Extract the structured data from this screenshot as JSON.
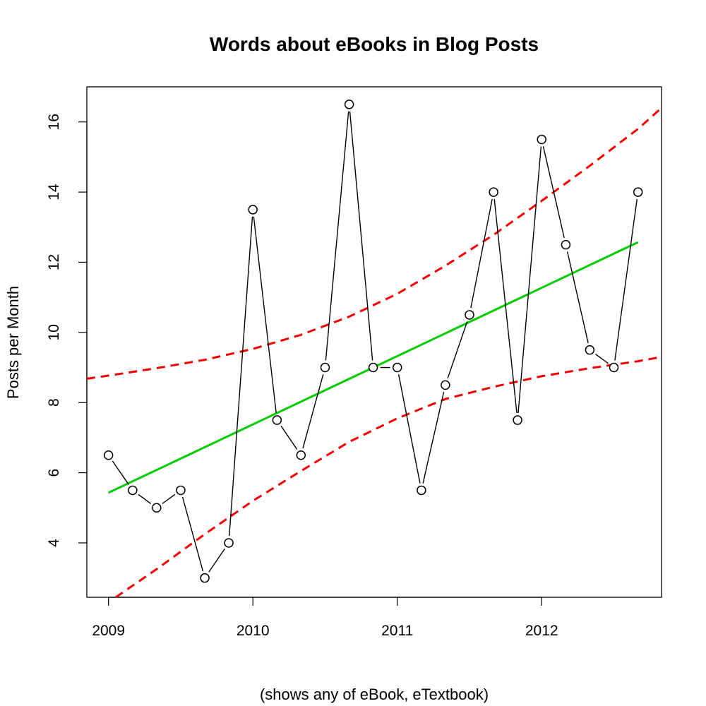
{
  "chart_data": {
    "type": "line",
    "title": "Words about eBooks in Blog Posts",
    "xlabel": "(shows any of eBook, eTextbook)",
    "ylabel": "Posts per Month",
    "xlim": [
      2008.85,
      2012.83
    ],
    "ylim": [
      2.45,
      17.0
    ],
    "x_ticks": [
      2009,
      2010,
      2011,
      2012
    ],
    "x_tick_labels": [
      "2009",
      "2010",
      "2011",
      "2012"
    ],
    "y_ticks": [
      4,
      6,
      8,
      10,
      12,
      14,
      16
    ],
    "y_tick_labels": [
      "4",
      "6",
      "8",
      "10",
      "12",
      "14",
      "16"
    ],
    "grid": false,
    "legend": "none",
    "series": [
      {
        "role": "observed",
        "style": "black line with open circle markers",
        "color": "#000000",
        "x": [
          2009.0,
          2009.167,
          2009.333,
          2009.5,
          2009.667,
          2009.833,
          2010.0,
          2010.167,
          2010.333,
          2010.5,
          2010.667,
          2010.833,
          2011.0,
          2011.167,
          2011.333,
          2011.5,
          2011.667,
          2011.833,
          2012.0,
          2012.167,
          2012.333,
          2012.5,
          2012.667
        ],
        "y": [
          6.5,
          5.5,
          5.0,
          5.5,
          3.0,
          4.0,
          13.5,
          7.5,
          6.5,
          9.0,
          16.5,
          9.0,
          9.0,
          5.5,
          8.5,
          10.5,
          14.0,
          7.5,
          15.5,
          12.5,
          9.5,
          9.0,
          14.0
        ]
      },
      {
        "role": "trend",
        "style": "solid green regression line",
        "color": "#00cc00",
        "x": [
          2009.0,
          2012.667
        ],
        "y": [
          5.43,
          12.57
        ]
      },
      {
        "role": "upper-bound",
        "style": "dashed red curve",
        "color": "#ee0000",
        "x": [
          2008.85,
          2009.0,
          2009.333,
          2009.667,
          2010.0,
          2010.333,
          2010.667,
          2011.0,
          2011.333,
          2011.667,
          2012.0,
          2012.333,
          2012.667,
          2012.83
        ],
        "y": [
          8.68,
          8.77,
          8.98,
          9.22,
          9.53,
          9.93,
          10.45,
          11.1,
          11.9,
          12.78,
          13.75,
          14.75,
          15.8,
          16.4
        ]
      },
      {
        "role": "lower-bound",
        "style": "dashed red curve",
        "color": "#ee0000",
        "x": [
          2009.05,
          2009.333,
          2009.667,
          2010.0,
          2010.333,
          2010.667,
          2011.0,
          2011.333,
          2011.667,
          2012.0,
          2012.333,
          2012.667,
          2012.83
        ],
        "y": [
          2.45,
          3.25,
          4.25,
          5.2,
          6.05,
          6.88,
          7.55,
          8.1,
          8.45,
          8.75,
          8.98,
          9.18,
          9.3
        ]
      }
    ]
  }
}
